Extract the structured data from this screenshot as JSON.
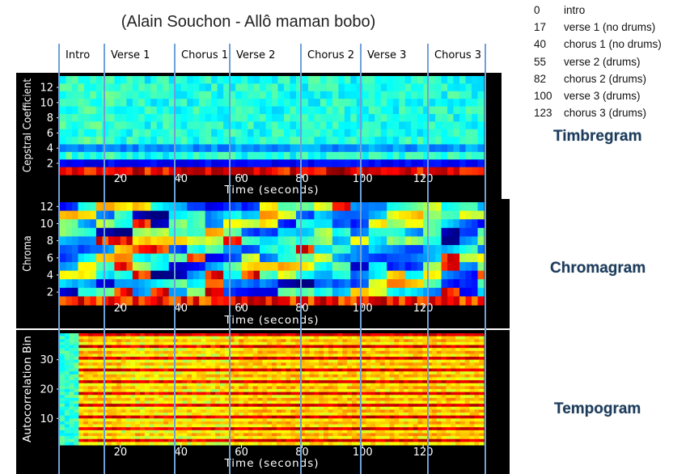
{
  "title": "(Alain Souchon - Allô maman bobo)",
  "segments": [
    {
      "time": "0",
      "label": "intro"
    },
    {
      "time": "17",
      "label": "verse 1 (no drums)"
    },
    {
      "time": "40",
      "label": "chorus 1 (no drums)"
    },
    {
      "time": "55",
      "label": "verse 2 (drums)"
    },
    {
      "time": "82",
      "label": "chorus 2 (drums)"
    },
    {
      "time": "100",
      "label": "verse 3 (drums)"
    },
    {
      "time": "123",
      "label": "chorus 3 (drums)"
    }
  ],
  "section_labels": [
    "Intro",
    "Verse 1",
    "Chorus 1",
    "Verse 2",
    "Chorus 2",
    "Verse 3",
    "Chorus 3"
  ],
  "gram_labels": {
    "timbregram": "Timbregram",
    "chromagram": "Chromagram",
    "tempogram": "Tempogram"
  },
  "colors": {
    "divider": "#6fa1d6",
    "panel_bg": "#000000",
    "colormap": "jet"
  },
  "chart_data": [
    {
      "type": "heatmap",
      "name": "timbregram",
      "ylabel": "Cepstral Coefficient",
      "xlabel": "Time (seconds)",
      "yticks": [
        2,
        4,
        6,
        8,
        10,
        12
      ],
      "xticks": [
        20,
        40,
        60,
        80,
        100,
        120
      ],
      "xlim": [
        0,
        140
      ],
      "ylim": [
        0.5,
        13.5
      ],
      "rows": 13
    },
    {
      "type": "heatmap",
      "name": "chromagram",
      "ylabel": "Chroma",
      "xlabel": "Time (seconds)",
      "yticks": [
        2,
        4,
        6,
        8,
        10,
        12
      ],
      "xticks": [
        20,
        40,
        60,
        80,
        100,
        120
      ],
      "xlim": [
        0,
        140
      ],
      "ylim": [
        0.5,
        12.5
      ],
      "rows": 12
    },
    {
      "type": "heatmap",
      "name": "tempogram",
      "ylabel": "Autocorrelation Bin",
      "xlabel": "Time (seconds)",
      "yticks": [
        10,
        20,
        30
      ],
      "xticks": [
        20,
        40,
        60,
        80,
        100,
        120
      ],
      "xlim": [
        0,
        140
      ],
      "ylim": [
        1,
        39
      ],
      "rows": 38
    }
  ]
}
